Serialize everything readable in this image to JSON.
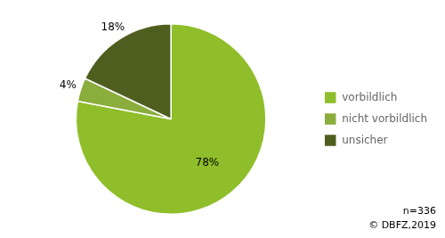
{
  "chart_data": {
    "type": "pie",
    "categories": [
      "vorbildlich",
      "nicht vorbildlich",
      "unsicher"
    ],
    "values": [
      78,
      4,
      18
    ],
    "value_labels": [
      "78%",
      "4%",
      "18%"
    ],
    "colors": [
      "#8fbe2a",
      "#8aad3c",
      "#4e5e1e"
    ],
    "data_labels": true,
    "legend": "right",
    "annotations": [
      "n=336",
      "© DBFZ,2019"
    ]
  }
}
